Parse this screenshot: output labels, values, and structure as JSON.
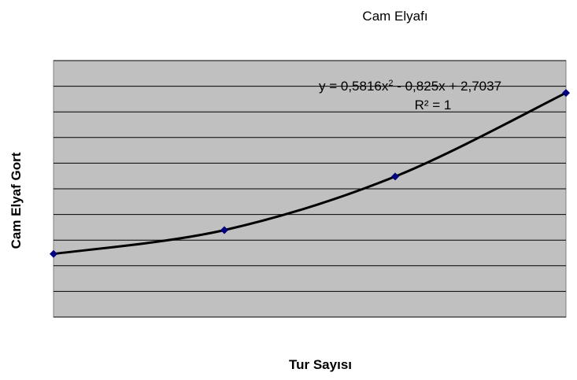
{
  "chart_data": {
    "type": "scatter",
    "title": "Cam Elyafı",
    "x_label": "Tur Sayısı",
    "y_label": "Cam Elyaf Gort",
    "x": [
      1,
      2,
      3,
      4
    ],
    "series": [
      {
        "name": "Cam Elyafı",
        "color": "#000080",
        "values": [
          2.46,
          3.39,
          5.48,
          8.74
        ]
      }
    ],
    "xlim": [
      1,
      4
    ],
    "ylim": [
      0,
      10
    ],
    "yticks": [
      0,
      1,
      2,
      3,
      4,
      5,
      6,
      7,
      8,
      9,
      10
    ],
    "show_tick_labels": false,
    "grid": true,
    "plot_background": "#c0c0c0",
    "trendline": {
      "color": "#000000",
      "equation_parts": [
        "y = 0,5816x",
        "2",
        " - 0,825x + 2,7037"
      ],
      "r_squared": "R² = 1"
    }
  }
}
